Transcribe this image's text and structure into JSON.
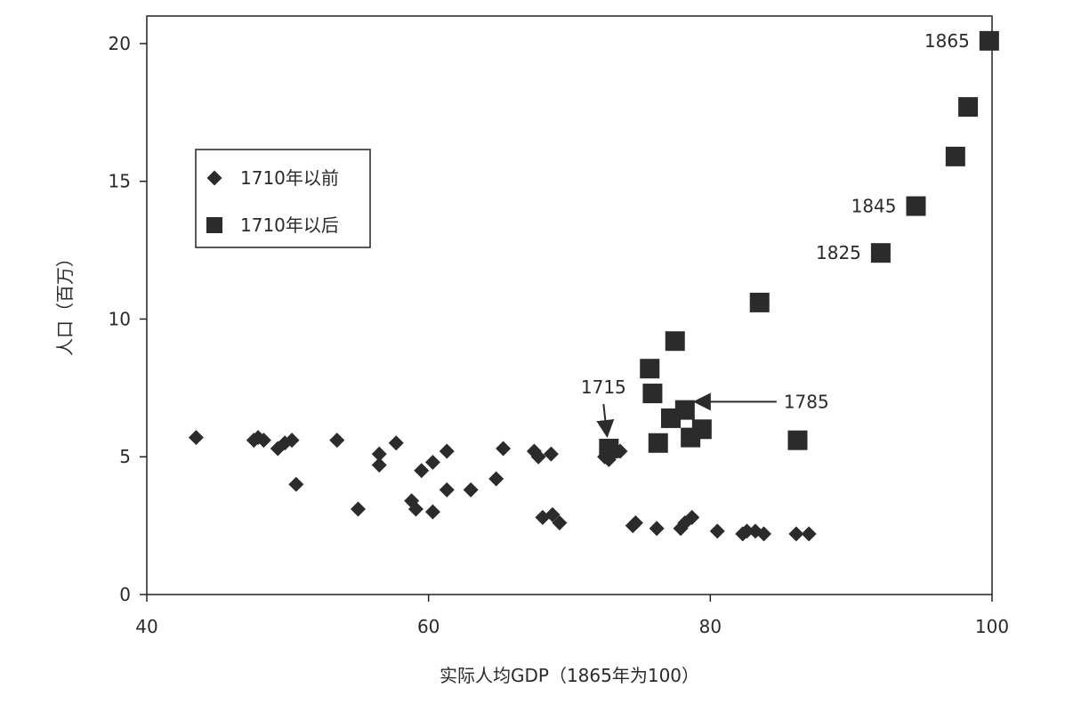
{
  "chart_data": {
    "type": "scatter",
    "xlabel": "实际人均GDP（1865年为100）",
    "ylabel": "人口（百万）",
    "xlim": [
      40,
      100
    ],
    "ylim": [
      0,
      21
    ],
    "xticks": [
      40,
      60,
      80,
      100
    ],
    "yticks": [
      0,
      5,
      10,
      15,
      20
    ],
    "xtick_labels": [
      "40",
      "60",
      "80",
      "100"
    ],
    "ytick_labels": [
      "0",
      "5",
      "10",
      "15",
      "20"
    ],
    "grid": false,
    "legend_position": "upper-left",
    "colors": {
      "marker": "#2b2b2b",
      "axis": "#222222"
    },
    "series": [
      {
        "name": "1710年以前",
        "marker": "diamond",
        "points": [
          [
            43.5,
            5.7
          ],
          [
            47.6,
            5.6
          ],
          [
            47.9,
            5.7
          ],
          [
            48.3,
            5.6
          ],
          [
            49.3,
            5.3
          ],
          [
            49.8,
            5.5
          ],
          [
            50.3,
            5.6
          ],
          [
            50.6,
            4.0
          ],
          [
            53.5,
            5.6
          ],
          [
            55.0,
            3.1
          ],
          [
            56.5,
            5.1
          ],
          [
            56.5,
            4.7
          ],
          [
            57.7,
            5.5
          ],
          [
            58.8,
            3.4
          ],
          [
            59.1,
            3.1
          ],
          [
            59.5,
            4.5
          ],
          [
            60.3,
            4.8
          ],
          [
            60.3,
            3.0
          ],
          [
            61.3,
            5.2
          ],
          [
            61.3,
            3.8
          ],
          [
            63.0,
            3.8
          ],
          [
            64.8,
            4.2
          ],
          [
            65.3,
            5.3
          ],
          [
            67.5,
            5.2
          ],
          [
            67.8,
            5.0
          ],
          [
            68.1,
            2.8
          ],
          [
            68.7,
            5.1
          ],
          [
            68.8,
            2.9
          ],
          [
            69.3,
            2.6
          ],
          [
            72.5,
            5.0
          ],
          [
            72.8,
            4.9
          ],
          [
            73.6,
            5.2
          ],
          [
            74.5,
            2.5
          ],
          [
            74.7,
            2.6
          ],
          [
            76.2,
            2.4
          ],
          [
            77.9,
            2.4
          ],
          [
            78.2,
            2.6
          ],
          [
            78.7,
            2.8
          ],
          [
            80.5,
            2.3
          ],
          [
            82.3,
            2.2
          ],
          [
            82.6,
            2.3
          ],
          [
            83.2,
            2.3
          ],
          [
            83.8,
            2.2
          ],
          [
            86.1,
            2.2
          ],
          [
            87.0,
            2.2
          ]
        ]
      },
      {
        "name": "1710年以后",
        "marker": "square",
        "points": [
          [
            72.8,
            5.3
          ],
          [
            75.7,
            8.2
          ],
          [
            75.9,
            7.3
          ],
          [
            76.3,
            5.5
          ],
          [
            77.2,
            6.4
          ],
          [
            77.5,
            9.2
          ],
          [
            78.2,
            6.7
          ],
          [
            78.6,
            5.7
          ],
          [
            79.4,
            6.0
          ],
          [
            83.5,
            10.6
          ],
          [
            86.2,
            5.6
          ],
          [
            92.1,
            12.4
          ],
          [
            94.6,
            14.1
          ],
          [
            97.4,
            15.9
          ],
          [
            98.3,
            17.7
          ],
          [
            99.8,
            20.1
          ]
        ]
      }
    ],
    "annotations": [
      {
        "text": "1865",
        "x": 99.8,
        "y": 20.1,
        "arrow": false
      },
      {
        "text": "1845",
        "x": 94.6,
        "y": 14.1,
        "arrow": false
      },
      {
        "text": "1825",
        "x": 92.1,
        "y": 12.4,
        "arrow": false
      },
      {
        "text": "1715",
        "x": 72.8,
        "y": 5.3,
        "arrow": true
      },
      {
        "text": "1785",
        "x": 79.4,
        "y": 7.0,
        "arrow": true
      }
    ]
  }
}
